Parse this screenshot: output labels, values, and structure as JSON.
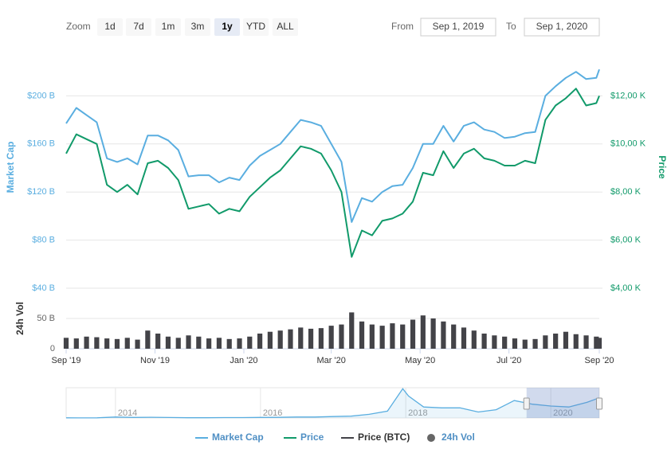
{
  "toolbar": {
    "zoom_label": "Zoom",
    "buttons": [
      "1d",
      "7d",
      "1m",
      "3m",
      "1y",
      "YTD",
      "ALL"
    ],
    "selected": 4,
    "from_label": "From",
    "from": "Sep 1, 2019",
    "to_label": "To",
    "to": "Sep 1, 2020"
  },
  "chart_data": [
    {
      "type": "line",
      "y_label": "Market Cap",
      "y2_label": "Price",
      "vol_label": "24h Vol",
      "x": [
        "2019-09-01",
        "2019-09-08",
        "2019-09-15",
        "2019-09-22",
        "2019-09-29",
        "2019-10-06",
        "2019-10-13",
        "2019-10-20",
        "2019-10-27",
        "2019-11-03",
        "2019-11-10",
        "2019-11-17",
        "2019-11-24",
        "2019-12-01",
        "2019-12-08",
        "2019-12-15",
        "2019-12-22",
        "2019-12-29",
        "2020-01-05",
        "2020-01-12",
        "2020-01-19",
        "2020-01-26",
        "2020-02-02",
        "2020-02-09",
        "2020-02-16",
        "2020-02-23",
        "2020-03-01",
        "2020-03-08",
        "2020-03-15",
        "2020-03-22",
        "2020-03-29",
        "2020-04-05",
        "2020-04-12",
        "2020-04-19",
        "2020-04-26",
        "2020-05-03",
        "2020-05-10",
        "2020-05-17",
        "2020-05-24",
        "2020-05-31",
        "2020-06-07",
        "2020-06-14",
        "2020-06-21",
        "2020-06-28",
        "2020-07-05",
        "2020-07-12",
        "2020-07-19",
        "2020-07-26",
        "2020-08-02",
        "2020-08-09",
        "2020-08-16",
        "2020-08-23",
        "2020-08-30",
        "2020-09-01"
      ],
      "xlim": [
        "2019-09-01",
        "2020-09-01"
      ],
      "xticks": [
        {
          "value": "2019-09-01",
          "label": "Sep '19"
        },
        {
          "value": "2019-11-01",
          "label": "Nov '19"
        },
        {
          "value": "2020-01-01",
          "label": "Jan '20"
        },
        {
          "value": "2020-03-01",
          "label": "Mar '20"
        },
        {
          "value": "2020-05-01",
          "label": "May '20"
        },
        {
          "value": "2020-07-01",
          "label": "Jul '20"
        },
        {
          "value": "2020-09-01",
          "label": "Sep '20"
        }
      ],
      "ylim": [
        40,
        240
      ],
      "yticks": [
        {
          "value": 40,
          "label": "$40 B"
        },
        {
          "value": 80,
          "label": "$80 B"
        },
        {
          "value": 120,
          "label": "$120 B"
        },
        {
          "value": 160,
          "label": "$160 B"
        },
        {
          "value": 200,
          "label": "$200 B"
        }
      ],
      "y2lim": [
        4000,
        14000
      ],
      "y2ticks": [
        {
          "value": 4000,
          "label": "$4,00 K"
        },
        {
          "value": 6000,
          "label": "$6,00 K"
        },
        {
          "value": 8000,
          "label": "$8,00 K"
        },
        {
          "value": 10000,
          "label": "$10,00 K"
        },
        {
          "value": 12000,
          "label": "$12,00 K"
        }
      ],
      "vol_lim": [
        0,
        100
      ],
      "vol_ticks": [
        0,
        {
          "value": 50,
          "label": "50 B"
        }
      ],
      "grid": true,
      "legend": "bottom",
      "series": [
        {
          "name": "Market Cap",
          "color": "#5aaee0",
          "axis": "y",
          "values": [
            177,
            190,
            184,
            178,
            148,
            145,
            148,
            143,
            167,
            167,
            163,
            155,
            133,
            134,
            134,
            128,
            132,
            130,
            142,
            150,
            155,
            160,
            170,
            180,
            178,
            175,
            160,
            145,
            95,
            115,
            112,
            120,
            125,
            126,
            140,
            160,
            160,
            175,
            162,
            175,
            178,
            172,
            170,
            165,
            166,
            169,
            170,
            200,
            208,
            215,
            220,
            214,
            215,
            222
          ]
        },
        {
          "name": "Price",
          "color": "#119a6a",
          "axis": "y2",
          "values": [
            9600,
            10400,
            10200,
            10000,
            8300,
            8000,
            8300,
            7900,
            9200,
            9300,
            9000,
            8500,
            7300,
            7400,
            7500,
            7100,
            7300,
            7200,
            7800,
            8200,
            8600,
            8900,
            9400,
            9900,
            9800,
            9600,
            8900,
            8000,
            5300,
            6400,
            6200,
            6800,
            6900,
            7100,
            7600,
            8800,
            8700,
            9700,
            9000,
            9600,
            9800,
            9400,
            9300,
            9100,
            9100,
            9300,
            9200,
            11000,
            11600,
            11900,
            12300,
            11600,
            11700,
            12000
          ]
        },
        {
          "name": "24h Vol",
          "color": "#434348",
          "axis": "vol",
          "type": "bar",
          "values": [
            18,
            17,
            20,
            19,
            17,
            16,
            18,
            15,
            30,
            25,
            20,
            18,
            22,
            20,
            17,
            18,
            16,
            17,
            20,
            25,
            28,
            30,
            32,
            35,
            33,
            34,
            38,
            40,
            60,
            45,
            40,
            38,
            42,
            40,
            48,
            55,
            50,
            45,
            40,
            35,
            30,
            25,
            22,
            20,
            17,
            15,
            16,
            22,
            25,
            28,
            24,
            22,
            20,
            18
          ]
        }
      ],
      "hidden_series": [
        {
          "name": "Price (BTC)",
          "color": "#434348"
        }
      ]
    },
    {
      "type": "area",
      "color": "#5aaee0",
      "x": [
        "2013-04-28",
        "2013-07-01",
        "2013-10-01",
        "2014-01-01",
        "2014-04-01",
        "2014-07-01",
        "2014-10-01",
        "2015-01-01",
        "2015-04-01",
        "2015-07-01",
        "2015-10-01",
        "2016-01-01",
        "2016-04-01",
        "2016-07-01",
        "2016-10-01",
        "2017-01-01",
        "2017-04-01",
        "2017-07-01",
        "2017-10-01",
        "2017-12-17",
        "2018-01-15",
        "2018-04-01",
        "2018-07-01",
        "2018-10-01",
        "2019-01-01",
        "2019-04-01",
        "2019-07-01",
        "2019-10-01",
        "2020-01-01",
        "2020-04-01",
        "2020-07-01",
        "2020-09-01"
      ],
      "values": [
        1.5,
        1,
        2,
        10,
        6,
        8,
        5,
        3,
        3,
        4,
        4,
        6,
        7,
        10,
        10,
        16,
        20,
        40,
        75,
        320,
        240,
        120,
        110,
        110,
        65,
        90,
        190,
        150,
        130,
        120,
        170,
        220
      ],
      "xlim": [
        "2013-04-28",
        "2020-09-01"
      ],
      "ylim": [
        0,
        330
      ],
      "xticks": [
        {
          "value": "2014-01-01",
          "label": "2014"
        },
        {
          "value": "2016-01-01",
          "label": "2016"
        },
        {
          "value": "2018-01-01",
          "label": "2018"
        },
        {
          "value": "2020-01-01",
          "label": "2020"
        }
      ]
    }
  ]
}
